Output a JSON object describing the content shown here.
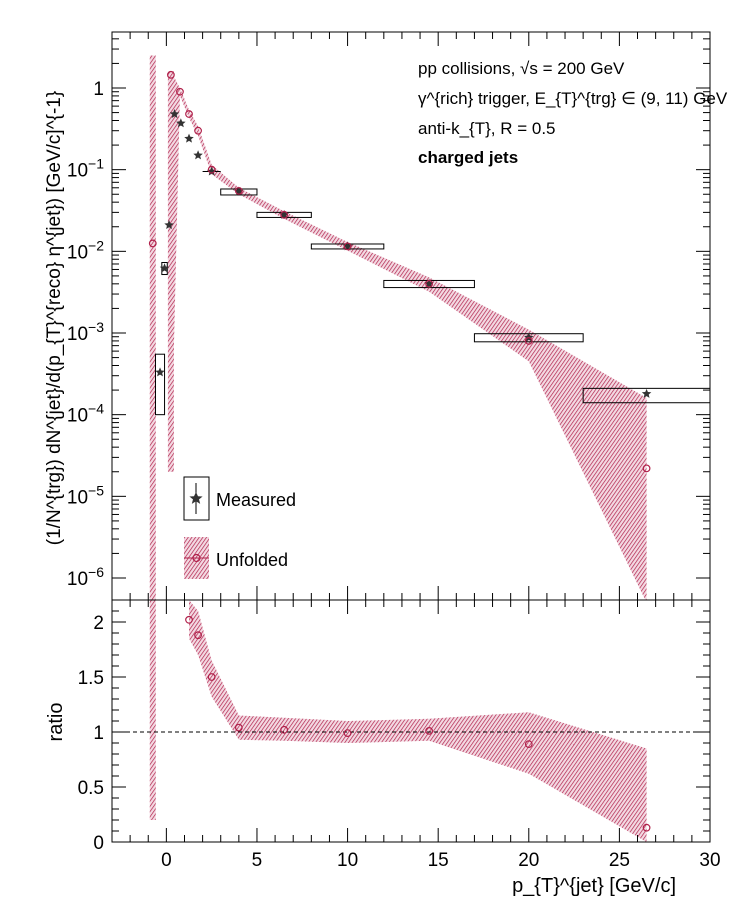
{
  "chart_data": [
    {
      "type": "scatter",
      "panel": "top",
      "ylabel": "(1/N^{trg}) dN^{jet}/d(p_{T}^{reco} η^{jet}) [GeV/c]^{-1}",
      "xlim": [
        -3,
        30
      ],
      "ylim": [
        4e-07,
        4
      ],
      "yscale": "log",
      "annotations": [
        "pp collisions, √s = 200 GeV",
        "γ^{rich} trigger, E_{T}^{trg} ∈ (9, 11) GeV",
        "anti-k_{T}, R = 0.5",
        "charged jets"
      ],
      "legend": [
        "Measured",
        "Unfolded"
      ],
      "legend_position": "lower-left",
      "y_tick_labels": [
        "1",
        "10^-1",
        "10^-2",
        "10^-3",
        "10^-4",
        "10^-5",
        "10^-6"
      ],
      "series": [
        {
          "name": "Measured",
          "marker": "filled-star",
          "color": "#333333",
          "points": [
            {
              "x": -0.35,
              "y": 0.00033,
              "xlo": -0.6,
              "xhi": -0.1,
              "ylo": 0.0001,
              "yhi": 0.00055
            },
            {
              "x": -0.1,
              "y": 0.0062,
              "xlo": -0.25,
              "xhi": 0.05,
              "ylo": 0.0052,
              "yhi": 0.0073
            },
            {
              "x": 0.15,
              "y": 0.021
            },
            {
              "x": 0.45,
              "y": 0.48
            },
            {
              "x": 0.8,
              "y": 0.37
            },
            {
              "x": 1.25,
              "y": 0.24
            },
            {
              "x": 1.75,
              "y": 0.15
            },
            {
              "x": 2.5,
              "y": 0.095,
              "xlo": 2.0,
              "xhi": 3.0
            },
            {
              "x": 4.0,
              "y": 0.054,
              "xlo": 3.0,
              "xhi": 5.0,
              "ylo": 0.049,
              "yhi": 0.058
            },
            {
              "x": 6.5,
              "y": 0.028,
              "xlo": 5.0,
              "xhi": 8.0,
              "ylo": 0.026,
              "yhi": 0.03
            },
            {
              "x": 10.0,
              "y": 0.0115,
              "xlo": 8.0,
              "xhi": 12.0,
              "ylo": 0.0107,
              "yhi": 0.0123
            },
            {
              "x": 14.5,
              "y": 0.004,
              "xlo": 12.0,
              "xhi": 17.0,
              "ylo": 0.0036,
              "yhi": 0.0044
            },
            {
              "x": 20.0,
              "y": 0.00088,
              "xlo": 17.0,
              "xhi": 23.0,
              "ylo": 0.00078,
              "yhi": 0.00098
            },
            {
              "x": 26.5,
              "y": 0.00018,
              "xlo": 23.0,
              "xhi": 30.0,
              "ylo": 0.00014,
              "yhi": 0.00021
            }
          ]
        },
        {
          "name": "Unfolded",
          "marker": "open-circle",
          "color": "#b0204a",
          "points": [
            {
              "x": -0.75,
              "y": 0.0125
            },
            {
              "x": 0.25,
              "y": 1.45
            },
            {
              "x": 0.75,
              "y": 0.9
            },
            {
              "x": 1.25,
              "y": 0.48
            },
            {
              "x": 1.75,
              "y": 0.3
            },
            {
              "x": 2.5,
              "y": 0.1
            },
            {
              "x": 4.0,
              "y": 0.055
            },
            {
              "x": 6.5,
              "y": 0.028
            },
            {
              "x": 10.0,
              "y": 0.0115
            },
            {
              "x": 14.5,
              "y": 0.004
            },
            {
              "x": 20.0,
              "y": 0.0008
            },
            {
              "x": 26.5,
              "y": 2.2e-05
            }
          ],
          "band": [
            {
              "x": -0.75,
              "lo": 4e-07,
              "hi": 2.5
            },
            {
              "x": 0.25,
              "lo": 2e-05,
              "hi": 1.6
            },
            {
              "x": 0.75,
              "lo": 0.8,
              "hi": 1.0
            },
            {
              "x": 1.25,
              "lo": 0.43,
              "hi": 0.54
            },
            {
              "x": 1.75,
              "lo": 0.26,
              "hi": 0.34
            },
            {
              "x": 2.5,
              "lo": 0.088,
              "hi": 0.115
            },
            {
              "x": 4.0,
              "lo": 0.05,
              "hi": 0.06
            },
            {
              "x": 6.5,
              "lo": 0.025,
              "hi": 0.031
            },
            {
              "x": 10.0,
              "lo": 0.0102,
              "hi": 0.013
            },
            {
              "x": 14.5,
              "lo": 0.0032,
              "hi": 0.0048
            },
            {
              "x": 20.0,
              "lo": 0.00045,
              "hi": 0.0011
            },
            {
              "x": 26.5,
              "lo": 5e-07,
              "hi": 0.00016
            }
          ]
        }
      ]
    },
    {
      "type": "scatter",
      "panel": "bottom",
      "xlabel": "p_{T}^{jet} [GeV/c]",
      "ylabel": "ratio",
      "xlim": [
        -3,
        30
      ],
      "ylim": [
        0,
        2.2
      ],
      "x_ticks": [
        0,
        5,
        10,
        15,
        20,
        25,
        30
      ],
      "y_ticks": [
        0,
        0.5,
        1,
        1.5,
        2
      ],
      "reference_line": 1,
      "series": [
        {
          "name": "Unfolded",
          "marker": "open-circle",
          "color": "#b0204a",
          "points": [
            {
              "x": 1.25,
              "y": 2.02
            },
            {
              "x": 1.75,
              "y": 1.88
            },
            {
              "x": 2.5,
              "y": 1.5
            },
            {
              "x": 4.0,
              "y": 1.04
            },
            {
              "x": 6.5,
              "y": 1.02
            },
            {
              "x": 10.0,
              "y": 0.99
            },
            {
              "x": 14.5,
              "y": 1.01
            },
            {
              "x": 20.0,
              "y": 0.89
            },
            {
              "x": 26.5,
              "y": 0.13
            }
          ],
          "band": [
            {
              "x": 1.25,
              "lo": 1.85,
              "hi": 2.2
            },
            {
              "x": 1.75,
              "lo": 1.7,
              "hi": 2.1
            },
            {
              "x": 2.5,
              "lo": 1.32,
              "hi": 1.65
            },
            {
              "x": 4.0,
              "lo": 0.93,
              "hi": 1.15
            },
            {
              "x": 6.5,
              "lo": 0.92,
              "hi": 1.13
            },
            {
              "x": 10.0,
              "lo": 0.9,
              "hi": 1.1
            },
            {
              "x": 14.5,
              "lo": 0.92,
              "hi": 1.12
            },
            {
              "x": 20.0,
              "lo": 0.62,
              "hi": 1.18
            },
            {
              "x": 26.5,
              "lo": 0.0,
              "hi": 0.85
            }
          ],
          "spike_band": [
            {
              "x": -0.75,
              "lo": 0.2,
              "hi": 2.2
            }
          ]
        }
      ]
    }
  ]
}
